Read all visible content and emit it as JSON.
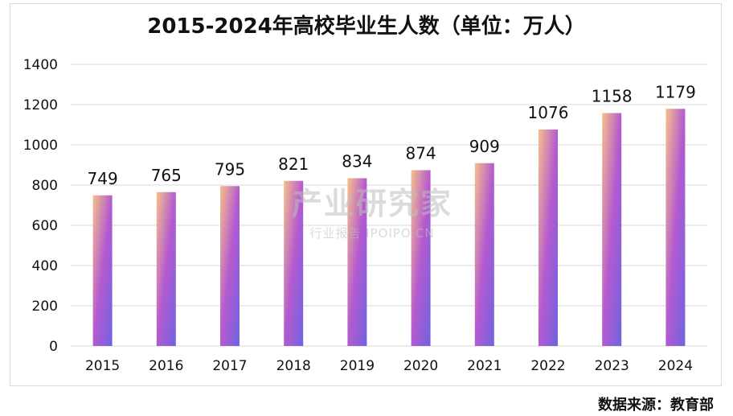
{
  "chart_data": {
    "type": "bar",
    "title": "2015-2024年高校毕业生人数（单位：万人）",
    "xlabel": "",
    "ylabel": "",
    "categories": [
      "2015",
      "2016",
      "2017",
      "2018",
      "2019",
      "2020",
      "2021",
      "2022",
      "2023",
      "2024"
    ],
    "values": [
      749,
      765,
      795,
      821,
      834,
      874,
      909,
      1076,
      1158,
      1179
    ],
    "ylim": [
      0,
      1400
    ],
    "yticks": [
      0,
      200,
      400,
      600,
      800,
      1000,
      1200,
      1400
    ],
    "grid": true,
    "legend": "none",
    "colors": {
      "bar_top": "#f6c08a",
      "bar_mid": "#b45ad0",
      "bar_bottom": "#6f64e0",
      "grid": "#d9d9d9"
    }
  },
  "watermark": {
    "main": "产业研究家",
    "sub": "行业报告 IPOIPO.CN"
  },
  "source_note": "数据来源：教育部"
}
